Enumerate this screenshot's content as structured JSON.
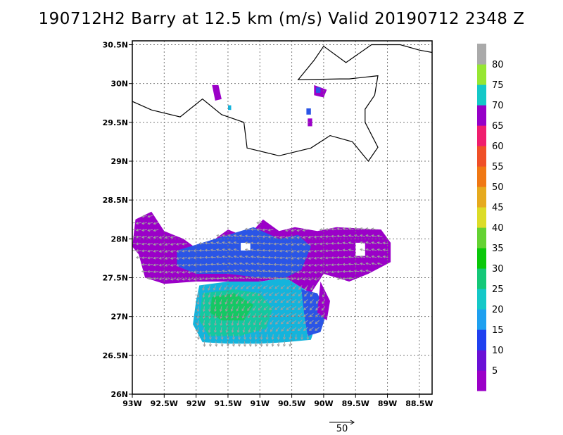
{
  "title": "190712H2 Barry at 12.5 km (m/s) Valid 20190712 2348 Z",
  "chart_data": {
    "type": "heatmap",
    "title": "190712H2 Barry at 12.5 km (m/s) Valid 20190712 2348 Z",
    "xlabel": "",
    "ylabel": "",
    "xlim": [
      -93.0,
      -88.3
    ],
    "ylim": [
      26.0,
      30.55
    ],
    "x_ticks": [
      {
        "value": -93.0,
        "label": "93W"
      },
      {
        "value": -92.5,
        "label": "92.5W"
      },
      {
        "value": -92.0,
        "label": "92W"
      },
      {
        "value": -91.5,
        "label": "91.5W"
      },
      {
        "value": -91.0,
        "label": "91W"
      },
      {
        "value": -90.5,
        "label": "90.5W"
      },
      {
        "value": -90.0,
        "label": "90W"
      },
      {
        "value": -89.5,
        "label": "89.5W"
      },
      {
        "value": -89.0,
        "label": "89W"
      },
      {
        "value": -88.5,
        "label": "88.5W"
      }
    ],
    "y_ticks": [
      {
        "value": 26.0,
        "label": "26N"
      },
      {
        "value": 26.5,
        "label": "26.5N"
      },
      {
        "value": 27.0,
        "label": "27N"
      },
      {
        "value": 27.5,
        "label": "27.5N"
      },
      {
        "value": 28.0,
        "label": "28N"
      },
      {
        "value": 28.5,
        "label": "28.5N"
      },
      {
        "value": 29.0,
        "label": "29N"
      },
      {
        "value": 29.5,
        "label": "29.5N"
      },
      {
        "value": 30.0,
        "label": "30N"
      },
      {
        "value": 30.5,
        "label": "30.5N"
      }
    ],
    "grid": true,
    "colorbar": {
      "placement": "right",
      "labels": [
        "5",
        "10",
        "15",
        "20",
        "25",
        "30",
        "35",
        "40",
        "45",
        "50",
        "55",
        "60",
        "65",
        "70",
        "75",
        "80"
      ],
      "colors": [
        "#9b00c8",
        "#6a10d6",
        "#2040f0",
        "#1ea0f0",
        "#14c8c8",
        "#14c878",
        "#0ac80a",
        "#64d232",
        "#dcdc28",
        "#e6aa1e",
        "#f07814",
        "#f05028",
        "#f01e6e",
        "#9600c8",
        "#14c8c8",
        "#96e632",
        "#aaaaaa"
      ]
    },
    "coastline": [
      [
        -93.0,
        29.77
      ],
      [
        -92.7,
        29.66
      ],
      [
        -92.25,
        29.57
      ],
      [
        -91.9,
        29.8
      ],
      [
        -91.6,
        29.6
      ],
      [
        -91.25,
        29.5
      ],
      [
        -91.2,
        29.17
      ],
      [
        -90.7,
        29.07
      ],
      [
        -90.2,
        29.17
      ],
      [
        -89.9,
        29.33
      ],
      [
        -89.55,
        29.25
      ],
      [
        -89.3,
        29.0
      ],
      [
        -89.15,
        29.18
      ],
      [
        -89.35,
        29.5
      ],
      [
        -89.35,
        29.67
      ],
      [
        -89.2,
        29.85
      ],
      [
        -89.15,
        30.1
      ],
      [
        -89.6,
        30.06
      ],
      [
        -89.75,
        30.06
      ],
      [
        -90.4,
        30.05
      ],
      [
        -90.15,
        30.3
      ],
      [
        -90.0,
        30.48
      ],
      [
        -89.65,
        30.27
      ],
      [
        -89.25,
        30.5
      ],
      [
        -88.8,
        30.5
      ],
      [
        -88.5,
        30.43
      ],
      [
        -88.3,
        30.4
      ]
    ],
    "wind_fields": [
      {
        "name": "purple_band",
        "color": "#9b00c8",
        "polygon": [
          [
            -92.95,
            28.25
          ],
          [
            -92.7,
            28.35
          ],
          [
            -92.5,
            28.1
          ],
          [
            -92.2,
            28.0
          ],
          [
            -91.95,
            27.85
          ],
          [
            -91.5,
            28.12
          ],
          [
            -91.2,
            28.02
          ],
          [
            -90.95,
            28.25
          ],
          [
            -90.7,
            28.1
          ],
          [
            -90.45,
            28.15
          ],
          [
            -90.1,
            28.1
          ],
          [
            -89.8,
            28.15
          ],
          [
            -89.1,
            28.12
          ],
          [
            -88.95,
            27.95
          ],
          [
            -88.95,
            27.7
          ],
          [
            -89.3,
            27.55
          ],
          [
            -89.6,
            27.45
          ],
          [
            -90.0,
            27.55
          ],
          [
            -90.2,
            27.3
          ],
          [
            -90.6,
            27.5
          ],
          [
            -91.0,
            27.45
          ],
          [
            -91.6,
            27.45
          ],
          [
            -92.0,
            27.45
          ],
          [
            -92.5,
            27.42
          ],
          [
            -92.8,
            27.5
          ],
          [
            -92.9,
            27.8
          ],
          [
            -93.0,
            27.9
          ]
        ]
      },
      {
        "name": "blue_core",
        "color": "#2a55e6",
        "polygon": [
          [
            -92.3,
            27.85
          ],
          [
            -91.9,
            27.95
          ],
          [
            -91.5,
            28.05
          ],
          [
            -91.1,
            28.15
          ],
          [
            -90.7,
            28.0
          ],
          [
            -90.4,
            28.05
          ],
          [
            -90.2,
            27.9
          ],
          [
            -90.35,
            27.6
          ],
          [
            -90.6,
            27.5
          ],
          [
            -91.0,
            27.5
          ],
          [
            -91.5,
            27.55
          ],
          [
            -92.0,
            27.55
          ],
          [
            -92.3,
            27.65
          ]
        ]
      },
      {
        "name": "cyan_south",
        "color": "#14b4dc",
        "polygon": [
          [
            -91.95,
            27.4
          ],
          [
            -91.5,
            27.45
          ],
          [
            -91.0,
            27.45
          ],
          [
            -90.6,
            27.5
          ],
          [
            -90.3,
            27.35
          ],
          [
            -90.25,
            27.05
          ],
          [
            -90.1,
            26.95
          ],
          [
            -90.2,
            26.7
          ],
          [
            -90.6,
            26.67
          ],
          [
            -91.0,
            26.65
          ],
          [
            -91.5,
            26.65
          ],
          [
            -91.9,
            26.67
          ],
          [
            -92.05,
            26.9
          ],
          [
            -92.0,
            27.2
          ]
        ]
      },
      {
        "name": "teal_south",
        "color": "#14c8a0",
        "polygon": [
          [
            -91.9,
            27.3
          ],
          [
            -91.4,
            27.35
          ],
          [
            -91.0,
            27.3
          ],
          [
            -90.8,
            27.1
          ],
          [
            -90.9,
            26.85
          ],
          [
            -91.3,
            26.75
          ],
          [
            -91.8,
            26.75
          ],
          [
            -91.95,
            26.95
          ]
        ]
      },
      {
        "name": "green_max",
        "color": "#14c864",
        "polygon": [
          [
            -91.75,
            27.25
          ],
          [
            -91.4,
            27.3
          ],
          [
            -91.1,
            27.15
          ],
          [
            -91.25,
            26.95
          ],
          [
            -91.6,
            26.95
          ],
          [
            -91.78,
            27.05
          ]
        ]
      },
      {
        "name": "blue_east_tail",
        "color": "#2a55e6",
        "polygon": [
          [
            -90.35,
            27.35
          ],
          [
            -90.1,
            27.3
          ],
          [
            -89.95,
            27.05
          ],
          [
            -90.05,
            26.8
          ],
          [
            -90.25,
            26.75
          ],
          [
            -90.3,
            27.0
          ]
        ]
      },
      {
        "name": "purple_east_notch",
        "color": "#9b00c8",
        "polygon": [
          [
            -90.05,
            27.45
          ],
          [
            -89.9,
            27.2
          ],
          [
            -89.95,
            26.95
          ],
          [
            -90.1,
            27.05
          ]
        ]
      },
      {
        "name": "blob_a",
        "color": "#9b00c8",
        "polygon": [
          [
            -91.75,
            29.98
          ],
          [
            -91.65,
            29.98
          ],
          [
            -91.6,
            29.8
          ],
          [
            -91.7,
            29.78
          ]
        ]
      },
      {
        "name": "blob_b",
        "color": "#9b00c8",
        "polygon": [
          [
            -90.15,
            29.98
          ],
          [
            -89.95,
            29.92
          ],
          [
            -90.0,
            29.82
          ],
          [
            -90.15,
            29.85
          ]
        ]
      },
      {
        "name": "blob_c",
        "color": "#2a55e6",
        "polygon": [
          [
            -90.12,
            29.95
          ],
          [
            -90.05,
            29.95
          ],
          [
            -90.05,
            29.88
          ],
          [
            -90.12,
            29.88
          ]
        ]
      },
      {
        "name": "blob_d",
        "color": "#9b00c8",
        "polygon": [
          [
            -90.25,
            29.55
          ],
          [
            -90.18,
            29.55
          ],
          [
            -90.18,
            29.45
          ],
          [
            -90.25,
            29.45
          ]
        ]
      },
      {
        "name": "blob_e",
        "color": "#2a55e6",
        "polygon": [
          [
            -90.27,
            29.68
          ],
          [
            -90.2,
            29.68
          ],
          [
            -90.2,
            29.6
          ],
          [
            -90.27,
            29.6
          ]
        ]
      },
      {
        "name": "blob_f",
        "color": "#14b4dc",
        "polygon": [
          [
            -91.5,
            29.72
          ],
          [
            -91.45,
            29.72
          ],
          [
            -91.45,
            29.66
          ],
          [
            -91.5,
            29.66
          ]
        ]
      },
      {
        "name": "hole_1",
        "color": "#ffffff",
        "polygon": [
          [
            -89.5,
            27.95
          ],
          [
            -89.35,
            27.95
          ],
          [
            -89.35,
            27.78
          ],
          [
            -89.5,
            27.78
          ]
        ]
      },
      {
        "name": "hole_2",
        "color": "#ffffff",
        "polygon": [
          [
            -91.3,
            27.95
          ],
          [
            -91.15,
            27.95
          ],
          [
            -91.15,
            27.85
          ],
          [
            -91.3,
            27.85
          ]
        ]
      }
    ],
    "vector_arrows": {
      "color": "#a0a0a0"
    },
    "reference_vector": {
      "label": "50",
      "value": 50
    }
  }
}
